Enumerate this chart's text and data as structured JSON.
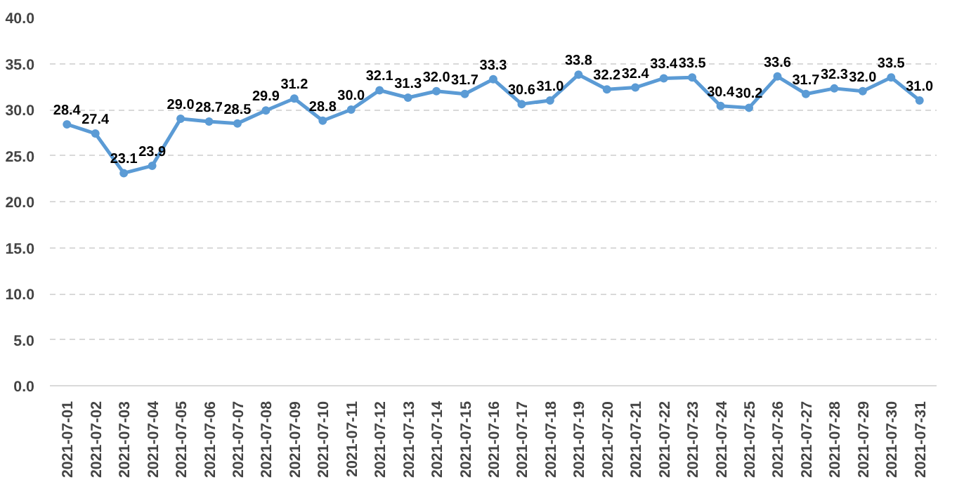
{
  "chart_data": {
    "type": "line",
    "categories": [
      "2021-07-01",
      "2021-07-02",
      "2021-07-03",
      "2021-07-04",
      "2021-07-05",
      "2021-07-06",
      "2021-07-07",
      "2021-07-08",
      "2021-07-09",
      "2021-07-10",
      "2021-07-11",
      "2021-07-12",
      "2021-07-13",
      "2021-07-14",
      "2021-07-15",
      "2021-07-16",
      "2021-07-17",
      "2021-07-18",
      "2021-07-19",
      "2021-07-20",
      "2021-07-21",
      "2021-07-22",
      "2021-07-23",
      "2021-07-24",
      "2021-07-25",
      "2021-07-26",
      "2021-07-27",
      "2021-07-28",
      "2021-07-29",
      "2021-07-30",
      "2021-07-31"
    ],
    "series": [
      {
        "color": "#5b9bd5",
        "values": [
          28.4,
          27.4,
          23.1,
          23.9,
          29.0,
          28.7,
          28.5,
          29.9,
          31.2,
          28.8,
          30.0,
          32.1,
          31.3,
          32.0,
          31.7,
          33.3,
          30.6,
          31.0,
          33.8,
          32.2,
          32.4,
          33.4,
          33.5,
          30.4,
          30.2,
          33.6,
          31.7,
          32.3,
          32.0,
          33.5,
          31.0
        ]
      }
    ],
    "value_labels": [
      "28.4",
      "27.4",
      "23.1",
      "23.9",
      "29.0",
      "28.7",
      "28.5",
      "29.9",
      "31.2",
      "28.8",
      "30.0",
      "32.1",
      "31.3",
      "32.0",
      "31.7",
      "33.3",
      "30.6",
      "31.0",
      "33.8",
      "32.2",
      "32.4",
      "33.4",
      "33.5",
      "30.4",
      "30.2",
      "33.6",
      "31.7",
      "32.3",
      "32.0",
      "33.5",
      "31.0"
    ],
    "ylim": [
      0,
      40
    ],
    "yticks": [
      {
        "value": 0,
        "label": "0.0"
      },
      {
        "value": 5,
        "label": "5.0"
      },
      {
        "value": 10,
        "label": "10.0"
      },
      {
        "value": 15,
        "label": "15.0"
      },
      {
        "value": 20,
        "label": "20.0"
      },
      {
        "value": 25,
        "label": "25.0"
      },
      {
        "value": 30,
        "label": "30.0"
      },
      {
        "value": 35,
        "label": "35.0"
      },
      {
        "value": 40,
        "label": "40.0"
      }
    ],
    "grid": "y",
    "marker": "circle",
    "line_style": "solid"
  }
}
